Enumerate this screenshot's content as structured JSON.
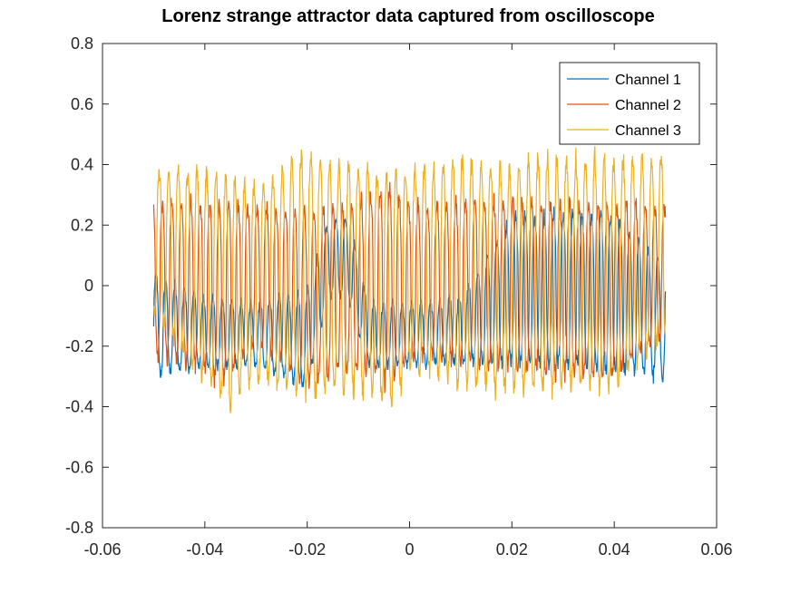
{
  "chart_data": {
    "type": "line",
    "title": "Lorenz strange attractor data captured from oscilloscope",
    "xlabel": "",
    "ylabel": "",
    "xlim": [
      -0.06,
      0.06
    ],
    "ylim": [
      -0.8,
      0.8
    ],
    "xticks": [
      -0.06,
      -0.04,
      -0.02,
      0,
      0.02,
      0.04,
      0.06
    ],
    "xtick_labels": [
      "-0.06",
      "-0.04",
      "-0.02",
      "0",
      "0.02",
      "0.04",
      "0.06"
    ],
    "yticks": [
      -0.8,
      -0.6,
      -0.4,
      -0.2,
      0,
      0.2,
      0.4,
      0.6,
      0.8
    ],
    "ytick_labels": [
      "-0.8",
      "-0.6",
      "-0.4",
      "-0.2",
      "0",
      "0.2",
      "0.4",
      "0.6",
      "0.8"
    ],
    "grid": false,
    "legend_position": "top-right",
    "time_range": [
      -0.05,
      0.05
    ],
    "oscillation_period": 0.00185,
    "series": [
      {
        "name": "Channel 1",
        "color": "#0072BD",
        "envelope": [
          {
            "x": -0.05,
            "low": -0.31,
            "high": 0.05
          },
          {
            "x": -0.04,
            "low": -0.28,
            "high": -0.03
          },
          {
            "x": -0.03,
            "low": -0.27,
            "high": -0.05
          },
          {
            "x": -0.02,
            "low": -0.35,
            "high": 0.0
          },
          {
            "x": -0.016,
            "low": -0.05,
            "high": 0.22
          },
          {
            "x": -0.012,
            "low": -0.05,
            "high": 0.24
          },
          {
            "x": -0.008,
            "low": -0.27,
            "high": -0.05
          },
          {
            "x": 0.0,
            "low": -0.27,
            "high": -0.05
          },
          {
            "x": 0.01,
            "low": -0.26,
            "high": -0.03
          },
          {
            "x": 0.02,
            "low": -0.28,
            "high": 0.25
          },
          {
            "x": 0.03,
            "low": -0.28,
            "high": 0.26
          },
          {
            "x": 0.04,
            "low": -0.3,
            "high": 0.25
          },
          {
            "x": 0.05,
            "low": -0.32,
            "high": 0.08
          }
        ]
      },
      {
        "name": "Channel 2",
        "color": "#D95319",
        "envelope": [
          {
            "x": -0.05,
            "low": -0.25,
            "high": 0.3
          },
          {
            "x": -0.04,
            "low": -0.3,
            "high": 0.3
          },
          {
            "x": -0.037,
            "low": -0.36,
            "high": 0.3
          },
          {
            "x": -0.03,
            "low": -0.2,
            "high": 0.28
          },
          {
            "x": -0.02,
            "low": -0.35,
            "high": 0.27
          },
          {
            "x": -0.01,
            "low": -0.3,
            "high": 0.3
          },
          {
            "x": -0.004,
            "low": -0.36,
            "high": 0.36
          },
          {
            "x": 0.0,
            "low": -0.25,
            "high": 0.28
          },
          {
            "x": 0.01,
            "low": -0.27,
            "high": 0.3
          },
          {
            "x": 0.02,
            "low": -0.3,
            "high": 0.3
          },
          {
            "x": 0.03,
            "low": -0.32,
            "high": 0.3
          },
          {
            "x": 0.04,
            "low": -0.32,
            "high": 0.3
          },
          {
            "x": 0.05,
            "low": -0.18,
            "high": 0.28
          }
        ]
      },
      {
        "name": "Channel 3",
        "color": "#EDB120",
        "envelope": [
          {
            "x": -0.05,
            "low": -0.1,
            "high": 0.4
          },
          {
            "x": -0.04,
            "low": -0.35,
            "high": 0.4
          },
          {
            "x": -0.036,
            "low": -0.43,
            "high": 0.4
          },
          {
            "x": -0.03,
            "low": -0.35,
            "high": 0.35
          },
          {
            "x": -0.02,
            "low": -0.4,
            "high": 0.49
          },
          {
            "x": -0.01,
            "low": -0.38,
            "high": 0.42
          },
          {
            "x": -0.003,
            "low": -0.43,
            "high": 0.4
          },
          {
            "x": 0.0,
            "low": -0.3,
            "high": 0.4
          },
          {
            "x": 0.01,
            "low": -0.36,
            "high": 0.45
          },
          {
            "x": 0.02,
            "low": -0.38,
            "high": 0.42
          },
          {
            "x": 0.027,
            "low": -0.38,
            "high": 0.46
          },
          {
            "x": 0.04,
            "low": -0.37,
            "high": 0.45
          },
          {
            "x": 0.05,
            "low": -0.2,
            "high": 0.45
          }
        ]
      }
    ]
  }
}
